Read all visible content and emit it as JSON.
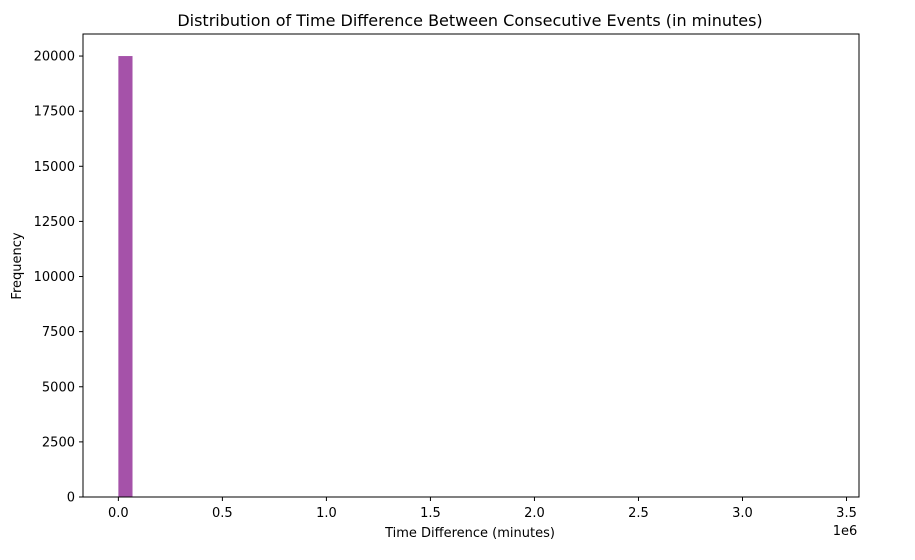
{
  "chart_data": {
    "type": "bar",
    "title": "Distribution of Time Difference Between Consecutive Events (in minutes)",
    "xlabel": "Time Difference (minutes)",
    "ylabel": "Frequency",
    "x_offset_label": "1e6",
    "xlim": [
      -170000,
      3560000
    ],
    "ylim": [
      0,
      21000
    ],
    "x_ticks": [
      0,
      500000,
      1000000,
      1500000,
      2000000,
      2500000,
      3000000,
      3500000
    ],
    "x_tick_labels": [
      "0.0",
      "0.5",
      "1.0",
      "1.5",
      "2.0",
      "2.5",
      "3.0",
      "3.5"
    ],
    "y_ticks": [
      0,
      2500,
      5000,
      7500,
      10000,
      12500,
      15000,
      17500,
      20000
    ],
    "y_tick_labels": [
      "0",
      "2500",
      "5000",
      "7500",
      "10000",
      "12500",
      "15000",
      "17500",
      "20000"
    ],
    "bins": [
      {
        "x0": 0,
        "x1": 68000,
        "value": 20000
      }
    ],
    "bar_color": "#9b3fa0",
    "grid": false
  }
}
